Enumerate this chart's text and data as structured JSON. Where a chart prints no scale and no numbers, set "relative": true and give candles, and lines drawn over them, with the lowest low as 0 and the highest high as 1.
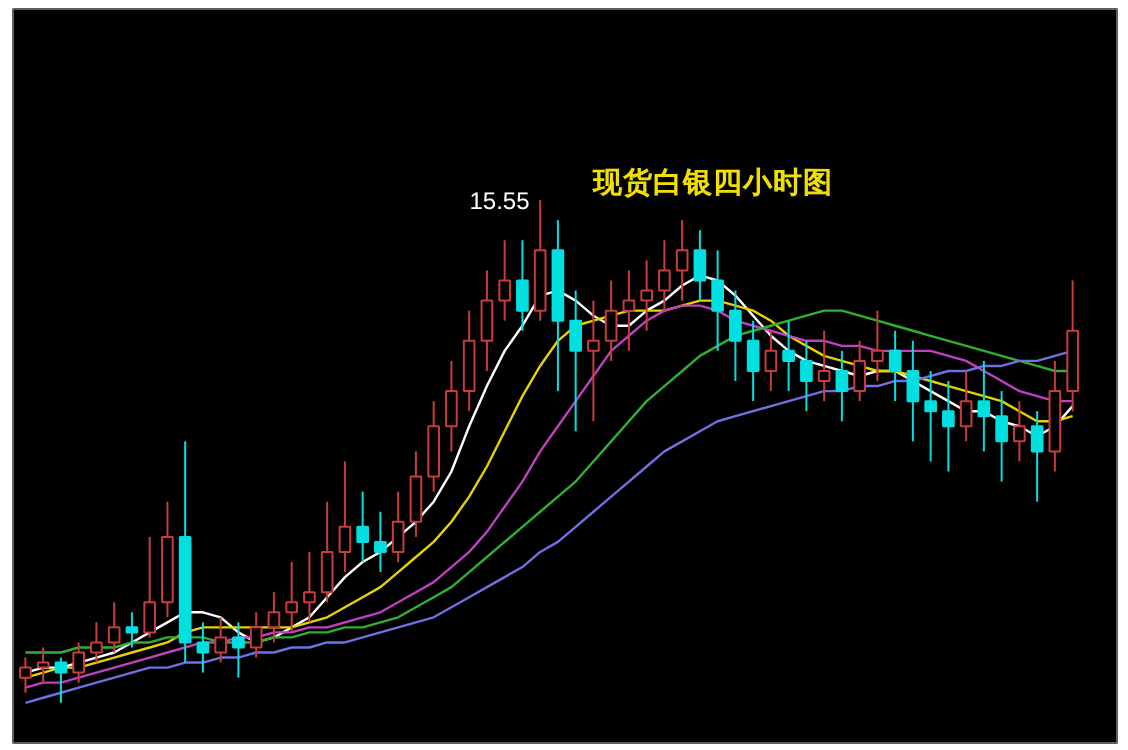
{
  "chart_data": {
    "type": "candlestick",
    "title": "现货白银四小时图",
    "relative": true,
    "categories": [
      null,
      null,
      null,
      null,
      null,
      null,
      null,
      null,
      null,
      null,
      null,
      null,
      null,
      null,
      null,
      null,
      null,
      null,
      null,
      null,
      null,
      null,
      null,
      null,
      null,
      null,
      null,
      null,
      null,
      null,
      null,
      null,
      null,
      null,
      null,
      null,
      null,
      null,
      null,
      null,
      null,
      null,
      null,
      null,
      null,
      null,
      null,
      null,
      null,
      null,
      null,
      null,
      null,
      null,
      null,
      null,
      null,
      null,
      null,
      null
    ],
    "ohlc": [
      [
        0.05,
        0.09,
        0.02,
        0.07
      ],
      [
        0.07,
        0.11,
        0.04,
        0.08
      ],
      [
        0.08,
        0.09,
        0,
        0.06
      ],
      [
        0.06,
        0.12,
        0.04,
        0.1
      ],
      [
        0.1,
        0.16,
        0.08,
        0.12
      ],
      [
        0.12,
        0.2,
        0.1,
        0.15
      ],
      [
        0.15,
        0.18,
        0.11,
        0.14
      ],
      [
        0.14,
        0.33,
        0.13,
        0.2
      ],
      [
        0.2,
        0.4,
        0.17,
        0.33
      ],
      [
        0.33,
        0.52,
        0.08,
        0.12
      ],
      [
        0.12,
        0.16,
        0.06,
        0.1
      ],
      [
        0.1,
        0.17,
        0.08,
        0.13
      ],
      [
        0.13,
        0.16,
        0.05,
        0.11
      ],
      [
        0.11,
        0.18,
        0.09,
        0.15
      ],
      [
        0.15,
        0.22,
        0.12,
        0.18
      ],
      [
        0.18,
        0.28,
        0.14,
        0.2
      ],
      [
        0.2,
        0.3,
        0.16,
        0.22
      ],
      [
        0.22,
        0.4,
        0.2,
        0.3
      ],
      [
        0.3,
        0.48,
        0.26,
        0.35
      ],
      [
        0.35,
        0.42,
        0.28,
        0.32
      ],
      [
        0.32,
        0.38,
        0.26,
        0.3
      ],
      [
        0.3,
        0.42,
        0.28,
        0.36
      ],
      [
        0.36,
        0.5,
        0.33,
        0.45
      ],
      [
        0.45,
        0.6,
        0.42,
        0.55
      ],
      [
        0.55,
        0.68,
        0.5,
        0.62
      ],
      [
        0.62,
        0.78,
        0.58,
        0.72
      ],
      [
        0.72,
        0.86,
        0.66,
        0.8
      ],
      [
        0.8,
        0.92,
        0.76,
        0.84
      ],
      [
        0.84,
        0.92,
        0.74,
        0.78
      ],
      [
        0.78,
        1.0,
        0.76,
        0.9
      ],
      [
        0.9,
        0.96,
        0.62,
        0.76
      ],
      [
        0.76,
        0.82,
        0.54,
        0.7
      ],
      [
        0.7,
        0.8,
        0.56,
        0.72
      ],
      [
        0.72,
        0.84,
        0.68,
        0.78
      ],
      [
        0.78,
        0.86,
        0.7,
        0.8
      ],
      [
        0.8,
        0.88,
        0.74,
        0.82
      ],
      [
        0.82,
        0.92,
        0.78,
        0.86
      ],
      [
        0.86,
        0.96,
        0.8,
        0.9
      ],
      [
        0.9,
        0.94,
        0.8,
        0.84
      ],
      [
        0.84,
        0.9,
        0.7,
        0.78
      ],
      [
        0.78,
        0.82,
        0.64,
        0.72
      ],
      [
        0.72,
        0.76,
        0.6,
        0.66
      ],
      [
        0.66,
        0.74,
        0.62,
        0.7
      ],
      [
        0.7,
        0.76,
        0.62,
        0.68
      ],
      [
        0.68,
        0.72,
        0.58,
        0.64
      ],
      [
        0.64,
        0.74,
        0.6,
        0.66
      ],
      [
        0.66,
        0.7,
        0.56,
        0.62
      ],
      [
        0.62,
        0.72,
        0.6,
        0.68
      ],
      [
        0.68,
        0.78,
        0.64,
        0.7
      ],
      [
        0.7,
        0.74,
        0.6,
        0.66
      ],
      [
        0.66,
        0.72,
        0.52,
        0.6
      ],
      [
        0.6,
        0.66,
        0.48,
        0.58
      ],
      [
        0.58,
        0.64,
        0.46,
        0.55
      ],
      [
        0.55,
        0.66,
        0.52,
        0.6
      ],
      [
        0.6,
        0.68,
        0.5,
        0.57
      ],
      [
        0.57,
        0.62,
        0.44,
        0.52
      ],
      [
        0.52,
        0.6,
        0.48,
        0.55
      ],
      [
        0.55,
        0.58,
        0.4,
        0.5
      ],
      [
        0.5,
        0.68,
        0.46,
        0.62
      ],
      [
        0.62,
        0.84,
        0.58,
        0.74
      ]
    ],
    "colors": [
      "#c83c3c",
      "#c83c3c",
      "#00e0e0",
      "#c83c3c",
      "#c83c3c",
      "#c83c3c",
      "#00e0e0",
      "#c83c3c",
      "#c83c3c",
      "#00e0e0",
      "#00e0e0",
      "#c83c3c",
      "#00e0e0",
      "#c83c3c",
      "#c83c3c",
      "#c83c3c",
      "#c83c3c",
      "#c83c3c",
      "#c83c3c",
      "#00e0e0",
      "#00e0e0",
      "#c83c3c",
      "#c83c3c",
      "#c83c3c",
      "#c83c3c",
      "#c83c3c",
      "#c83c3c",
      "#c83c3c",
      "#00e0e0",
      "#c83c3c",
      "#00e0e0",
      "#00e0e0",
      "#c83c3c",
      "#c83c3c",
      "#c83c3c",
      "#c83c3c",
      "#c83c3c",
      "#c83c3c",
      "#00e0e0",
      "#00e0e0",
      "#00e0e0",
      "#00e0e0",
      "#c83c3c",
      "#00e0e0",
      "#00e0e0",
      "#c83c3c",
      "#00e0e0",
      "#c83c3c",
      "#c83c3c",
      "#00e0e0",
      "#00e0e0",
      "#00e0e0",
      "#00e0e0",
      "#c83c3c",
      "#00e0e0",
      "#00e0e0",
      "#c83c3c",
      "#00e0e0",
      "#c83c3c",
      "#c83c3c"
    ],
    "series": [
      {
        "type": "line",
        "color": "#ffffff",
        "values": [
          0.06,
          0.07,
          0.07,
          0.08,
          0.09,
          0.1,
          0.12,
          0.14,
          0.16,
          0.18,
          0.18,
          0.17,
          0.14,
          0.12,
          0.13,
          0.15,
          0.17,
          0.21,
          0.25,
          0.28,
          0.3,
          0.33,
          0.36,
          0.4,
          0.46,
          0.55,
          0.63,
          0.7,
          0.75,
          0.81,
          0.82,
          0.8,
          0.77,
          0.75,
          0.75,
          0.78,
          0.8,
          0.83,
          0.85,
          0.84,
          0.81,
          0.77,
          0.73,
          0.7,
          0.68,
          0.67,
          0.66,
          0.65,
          0.66,
          0.66,
          0.64,
          0.62,
          0.6,
          0.58,
          0.58,
          0.56,
          0.55,
          0.53,
          0.55,
          0.59
        ]
      },
      {
        "type": "line",
        "color": "#e6d200",
        "values": [
          0.05,
          0.06,
          0.07,
          0.07,
          0.08,
          0.09,
          0.1,
          0.11,
          0.12,
          0.14,
          0.15,
          0.15,
          0.15,
          0.15,
          0.15,
          0.15,
          0.16,
          0.17,
          0.19,
          0.21,
          0.23,
          0.26,
          0.29,
          0.32,
          0.36,
          0.41,
          0.47,
          0.54,
          0.61,
          0.67,
          0.72,
          0.75,
          0.76,
          0.77,
          0.78,
          0.78,
          0.78,
          0.79,
          0.8,
          0.8,
          0.79,
          0.78,
          0.76,
          0.73,
          0.71,
          0.69,
          0.68,
          0.67,
          0.66,
          0.66,
          0.65,
          0.64,
          0.63,
          0.62,
          0.61,
          0.6,
          0.58,
          0.56,
          0.56,
          0.57
        ]
      },
      {
        "type": "line",
        "color": "#c040c0",
        "values": [
          0.03,
          0.04,
          0.04,
          0.05,
          0.06,
          0.07,
          0.08,
          0.09,
          0.1,
          0.11,
          0.12,
          0.12,
          0.13,
          0.13,
          0.14,
          0.14,
          0.15,
          0.15,
          0.16,
          0.17,
          0.18,
          0.2,
          0.22,
          0.24,
          0.27,
          0.3,
          0.34,
          0.39,
          0.44,
          0.5,
          0.55,
          0.6,
          0.65,
          0.7,
          0.73,
          0.76,
          0.78,
          0.79,
          0.79,
          0.78,
          0.76,
          0.75,
          0.74,
          0.73,
          0.72,
          0.72,
          0.71,
          0.71,
          0.7,
          0.7,
          0.7,
          0.7,
          0.69,
          0.68,
          0.66,
          0.64,
          0.62,
          0.61,
          0.6,
          0.6
        ]
      },
      {
        "type": "line",
        "color": "#30b030",
        "values": [
          0.1,
          0.1,
          0.1,
          0.11,
          0.11,
          0.11,
          0.12,
          0.12,
          0.13,
          0.13,
          0.13,
          0.12,
          0.12,
          0.12,
          0.13,
          0.13,
          0.14,
          0.14,
          0.15,
          0.15,
          0.16,
          0.17,
          0.19,
          0.21,
          0.23,
          0.26,
          0.29,
          0.32,
          0.35,
          0.38,
          0.41,
          0.44,
          0.48,
          0.52,
          0.56,
          0.6,
          0.63,
          0.66,
          0.69,
          0.71,
          0.73,
          0.74,
          0.75,
          0.76,
          0.77,
          0.78,
          0.78,
          0.77,
          0.76,
          0.75,
          0.74,
          0.73,
          0.72,
          0.71,
          0.7,
          0.69,
          0.68,
          0.67,
          0.66,
          0.66
        ]
      },
      {
        "type": "line",
        "color": "#7070e0",
        "values": [
          0.0,
          0.01,
          0.02,
          0.03,
          0.04,
          0.05,
          0.06,
          0.07,
          0.07,
          0.08,
          0.08,
          0.09,
          0.09,
          0.1,
          0.1,
          0.11,
          0.11,
          0.12,
          0.12,
          0.13,
          0.14,
          0.15,
          0.16,
          0.17,
          0.19,
          0.21,
          0.23,
          0.25,
          0.27,
          0.3,
          0.32,
          0.35,
          0.38,
          0.41,
          0.44,
          0.47,
          0.5,
          0.52,
          0.54,
          0.56,
          0.57,
          0.58,
          0.59,
          0.6,
          0.61,
          0.62,
          0.62,
          0.63,
          0.63,
          0.64,
          0.64,
          0.65,
          0.66,
          0.66,
          0.67,
          0.67,
          0.68,
          0.68,
          0.69,
          0.7
        ]
      }
    ],
    "annotations": [
      "15.55"
    ]
  }
}
